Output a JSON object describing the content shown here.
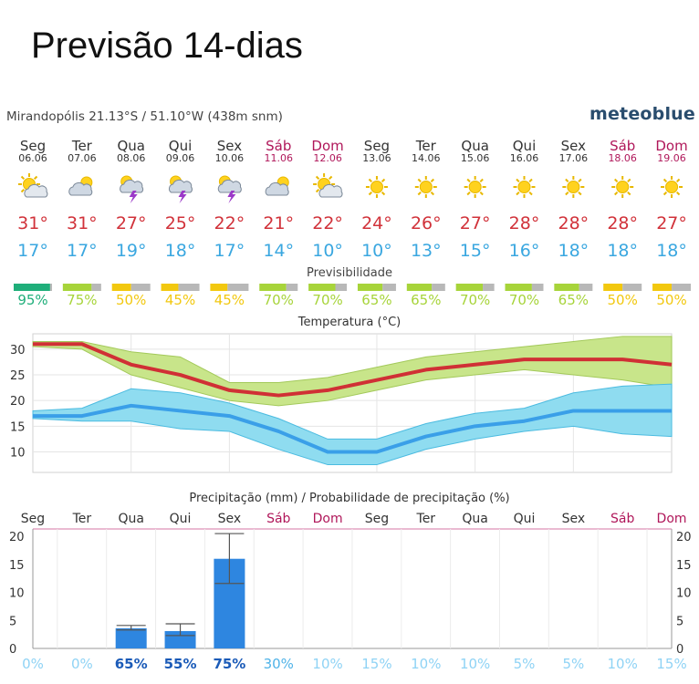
{
  "header": {
    "title": "Previsão 14-dias",
    "location": "Mirandopólis  21.13°S / 51.10°W (438m snm)",
    "brand": "meteoblue"
  },
  "days": [
    {
      "name": "Seg",
      "date": "06.06",
      "weekend": false,
      "icon": "sun-cloud-icon",
      "max": "31°",
      "min": "17°",
      "predictability": "95%",
      "pred_value": 95
    },
    {
      "name": "Ter",
      "date": "07.06",
      "weekend": false,
      "icon": "cloud-sun-icon",
      "max": "31°",
      "min": "17°",
      "predictability": "75%",
      "pred_value": 75
    },
    {
      "name": "Qua",
      "date": "08.06",
      "weekend": false,
      "icon": "thunderstorm-icon",
      "max": "27°",
      "min": "19°",
      "predictability": "50%",
      "pred_value": 50
    },
    {
      "name": "Qui",
      "date": "09.06",
      "weekend": false,
      "icon": "thunderstorm-icon",
      "max": "25°",
      "min": "18°",
      "predictability": "45%",
      "pred_value": 45
    },
    {
      "name": "Sex",
      "date": "10.06",
      "weekend": false,
      "icon": "thunderstorm-icon",
      "max": "22°",
      "min": "17°",
      "predictability": "45%",
      "pred_value": 45
    },
    {
      "name": "Sáb",
      "date": "11.06",
      "weekend": true,
      "icon": "cloud-sun-icon",
      "max": "21°",
      "min": "14°",
      "predictability": "70%",
      "pred_value": 70
    },
    {
      "name": "Dom",
      "date": "12.06",
      "weekend": true,
      "icon": "sun-cloud-icon",
      "max": "22°",
      "min": "10°",
      "predictability": "70%",
      "pred_value": 70
    },
    {
      "name": "Seg",
      "date": "13.06",
      "weekend": false,
      "icon": "sun-icon",
      "max": "24°",
      "min": "10°",
      "predictability": "65%",
      "pred_value": 65
    },
    {
      "name": "Ter",
      "date": "14.06",
      "weekend": false,
      "icon": "sun-icon",
      "max": "26°",
      "min": "13°",
      "predictability": "65%",
      "pred_value": 65
    },
    {
      "name": "Qua",
      "date": "15.06",
      "weekend": false,
      "icon": "sun-icon",
      "max": "27°",
      "min": "15°",
      "predictability": "70%",
      "pred_value": 70
    },
    {
      "name": "Qui",
      "date": "16.06",
      "weekend": false,
      "icon": "sun-icon",
      "max": "28°",
      "min": "16°",
      "predictability": "70%",
      "pred_value": 70
    },
    {
      "name": "Sex",
      "date": "17.06",
      "weekend": false,
      "icon": "sun-icon",
      "max": "28°",
      "min": "18°",
      "predictability": "65%",
      "pred_value": 65
    },
    {
      "name": "Sáb",
      "date": "18.06",
      "weekend": true,
      "icon": "sun-icon",
      "max": "28°",
      "min": "18°",
      "predictability": "50%",
      "pred_value": 50
    },
    {
      "name": "Dom",
      "date": "19.06",
      "weekend": true,
      "icon": "sun-icon",
      "max": "27°",
      "min": "18°",
      "predictability": "50%",
      "pred_value": 50
    }
  ],
  "predictability_label": "Previsibilidade",
  "colors": {
    "max_text": "#d1323a",
    "min_text": "#3aa7e0",
    "weekend": "#b0175a",
    "pred_high": "#1fae7a",
    "pred_mid": "#a7d43a",
    "pred_low": "#f2c80f",
    "pred_rest": "#b8b8b8",
    "max_line": "#d03035",
    "max_band": "#c8e58a",
    "min_line": "#3a9fe8",
    "min_band": "#8fdcf0",
    "precip_bar": "#2e86e0"
  },
  "chart_data": [
    {
      "type": "line",
      "title": "Temperatura (°C)",
      "x": [
        "Seg",
        "Ter",
        "Qua",
        "Qui",
        "Sex",
        "Sáb",
        "Dom",
        "Seg",
        "Ter",
        "Qua",
        "Qui",
        "Sex",
        "Sáb",
        "Dom"
      ],
      "ylim": [
        6,
        33
      ],
      "yticks": [
        10,
        15,
        20,
        25,
        30
      ],
      "series": [
        {
          "values": [
            31,
            31,
            27,
            25,
            22,
            21,
            22,
            24,
            26,
            27,
            28,
            28,
            28,
            27
          ],
          "band_upper": [
            31.5,
            31.5,
            29.5,
            28.5,
            23.5,
            23.5,
            24.5,
            26.5,
            28.5,
            29.5,
            30.5,
            31.5,
            32.5,
            32.5
          ],
          "band_lower": [
            30.5,
            30,
            25,
            22.5,
            20,
            19,
            20,
            22,
            24,
            25,
            26,
            25,
            24,
            22.5
          ]
        },
        {
          "values": [
            17,
            17,
            19,
            18,
            17,
            14,
            10,
            10,
            13,
            15,
            16,
            18,
            18,
            18
          ],
          "band_upper": [
            18,
            18.5,
            22.3,
            21.5,
            19.5,
            16.5,
            12.5,
            12.5,
            15.5,
            17.5,
            18.5,
            21.5,
            22.8,
            23.2
          ],
          "band_lower": [
            16.5,
            16,
            16,
            14.5,
            14,
            10.5,
            7.5,
            7.5,
            10.5,
            12.5,
            14,
            15,
            13.5,
            13
          ]
        }
      ]
    },
    {
      "type": "bar",
      "title": "Precipitação (mm) / Probabilidade de precipitação (%)",
      "categories": [
        "Seg",
        "Ter",
        "Qua",
        "Qui",
        "Sex",
        "Sáb",
        "Dom",
        "Seg",
        "Ter",
        "Qua",
        "Qui",
        "Sex",
        "Sáb",
        "Dom"
      ],
      "values": [
        0,
        0,
        3.6,
        3.1,
        16,
        0,
        0,
        0,
        0,
        0,
        0,
        0,
        0,
        0
      ],
      "error_low": [
        0,
        0,
        3.3,
        2.3,
        11.6,
        0,
        0,
        0,
        0,
        0,
        0,
        0,
        0,
        0
      ],
      "error_high": [
        0,
        0,
        4.1,
        4.4,
        20.5,
        0,
        0,
        0,
        0,
        0,
        0,
        0,
        0,
        0
      ],
      "probability": [
        "0%",
        "0%",
        "65%",
        "55%",
        "75%",
        "30%",
        "10%",
        "15%",
        "10%",
        "10%",
        "5%",
        "5%",
        "10%",
        "15%"
      ],
      "probability_value": [
        0,
        0,
        65,
        55,
        75,
        30,
        10,
        15,
        10,
        10,
        5,
        5,
        10,
        15
      ],
      "ylim": [
        0,
        21
      ],
      "yticks": [
        0,
        5,
        10,
        15,
        20
      ]
    }
  ]
}
